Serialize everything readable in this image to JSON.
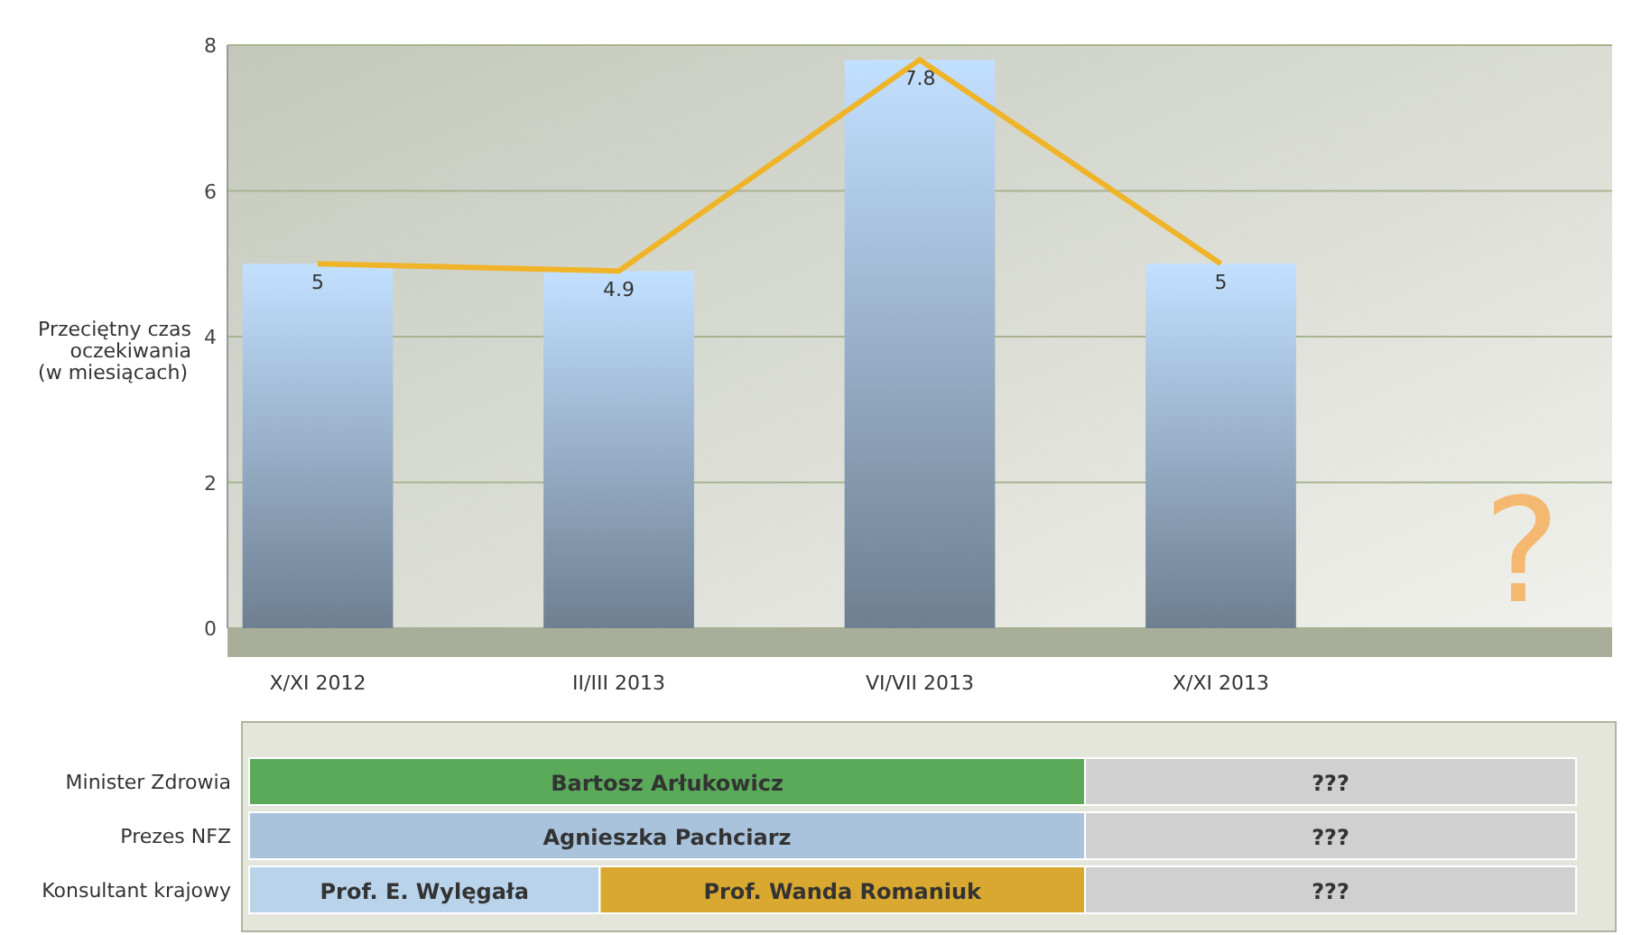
{
  "chart_data": [
    {
      "type": "bar",
      "ylabel": "Przeciętny czas oczekiwania (w miesiącach)",
      "categories": [
        "X/XI 2012",
        "II/III 2013",
        "VI/VII 2013",
        "X/XI 2013",
        null
      ],
      "ylim": [
        0,
        8
      ],
      "yticks": [
        0,
        2,
        4,
        6,
        8
      ],
      "grid": "y",
      "series": [
        {
          "type": "bar",
          "color": "#9db5cf",
          "values": [
            5,
            4.9,
            7.8,
            5,
            null
          ],
          "value_labels": [
            "5",
            "4.9",
            "7.8",
            "5",
            null
          ]
        },
        {
          "type": "line",
          "color": "#f0b428",
          "values": [
            5,
            4.9,
            7.8,
            5,
            null
          ]
        }
      ],
      "annotations": [
        "?"
      ]
    },
    {
      "type": "other",
      "categories": [
        "Minister Zdrowia",
        "Prezes NFZ",
        "Konsultant krajowy"
      ],
      "series": [
        {
          "colors": [
            "#5aaa5a",
            "#a9c3dc",
            "#b9d3ea"
          ],
          "values": [
            null,
            null,
            null
          ],
          "value_labels": [
            "Bartosz Arłukowicz",
            "Agnieszka Pachciarz",
            "Prof. E. Wylęgała"
          ]
        },
        {
          "color": "#d8a830",
          "values": [
            null,
            null,
            null
          ],
          "value_labels": [
            null,
            null,
            "Prof. Wanda Romaniuk"
          ]
        },
        {
          "color": "#d0d0d0",
          "values": [
            null,
            null,
            null
          ],
          "value_labels": [
            "???",
            "???",
            "???"
          ]
        }
      ]
    }
  ]
}
